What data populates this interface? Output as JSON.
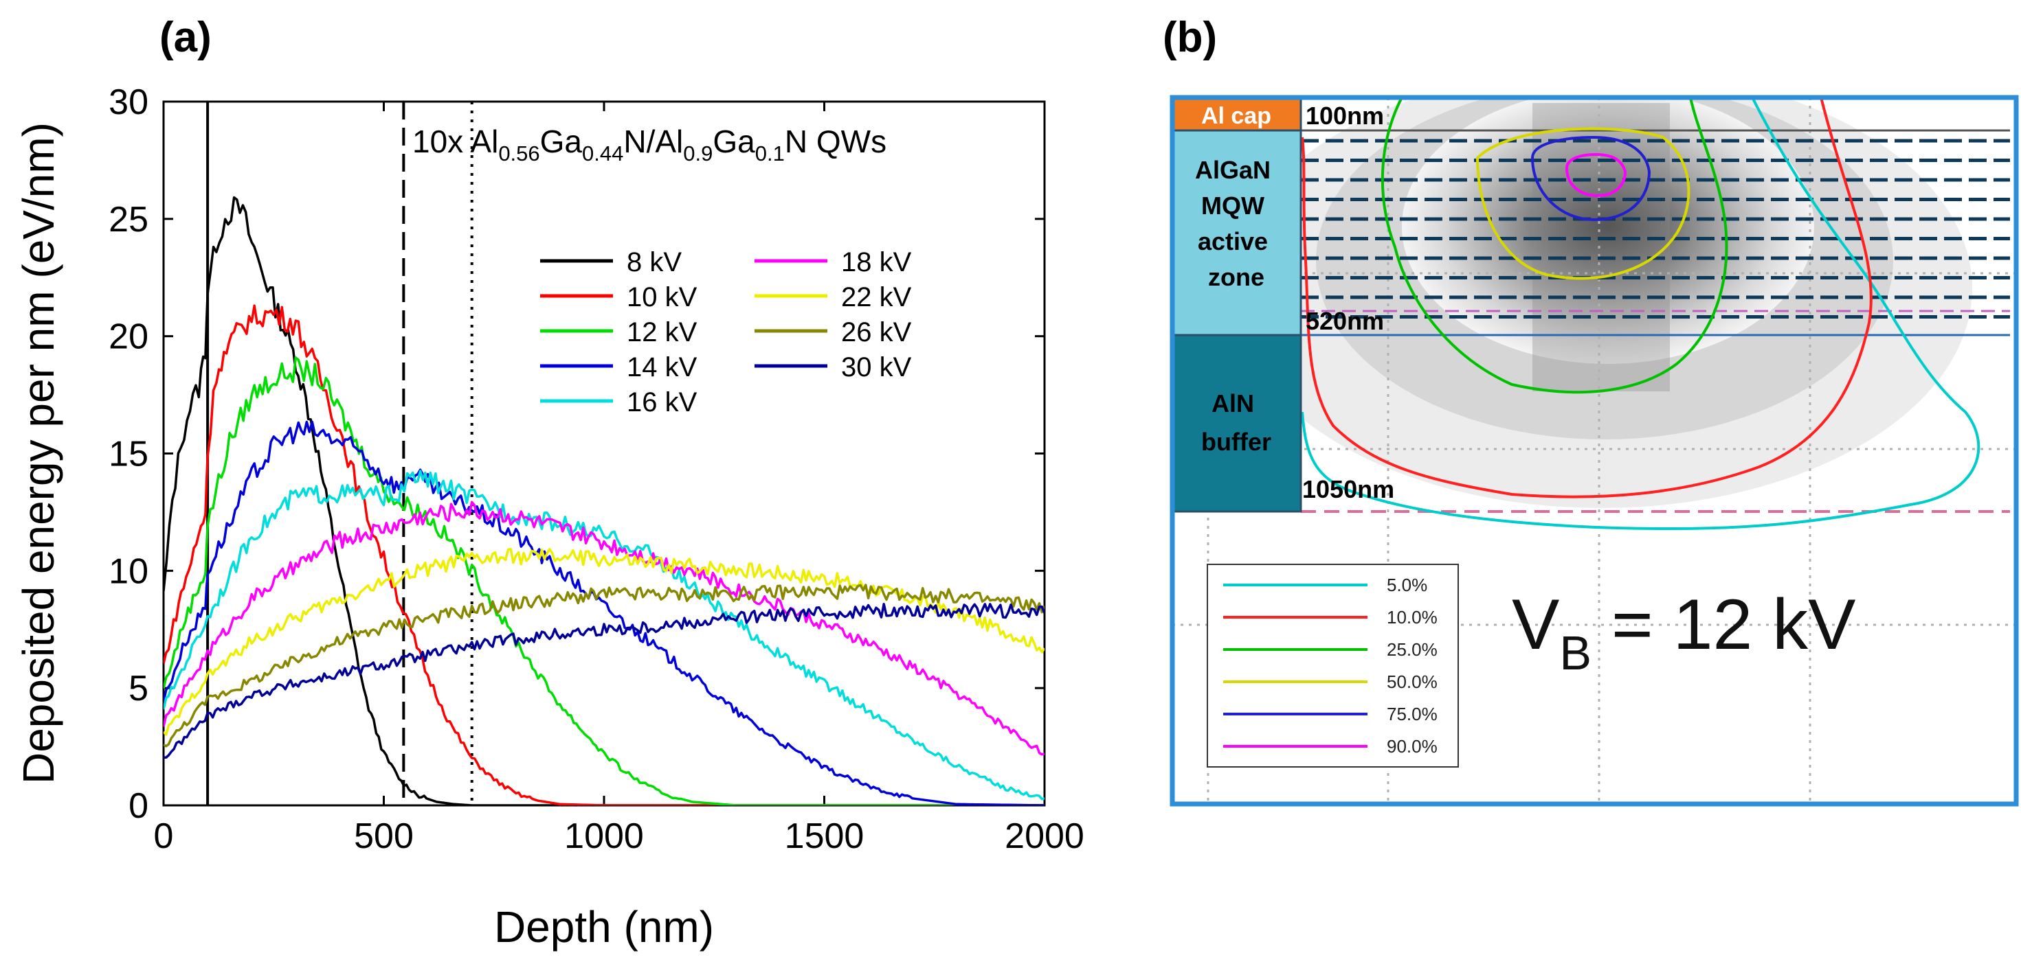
{
  "chart_data": [
    {
      "type": "line",
      "panel_label": "(a)",
      "title_parts": [
        "10x Al",
        "0.56",
        "Ga",
        "0.44",
        "N/Al",
        "0.9",
        "Ga",
        "0.1",
        "N QWs"
      ],
      "xlabel": "Depth (nm)",
      "ylabel": "Deposited energy per nm (eV/nm)",
      "xlim": [
        0,
        2000
      ],
      "ylim": [
        0,
        30
      ],
      "xticks": [
        0,
        500,
        1000,
        1500,
        2000
      ],
      "yticks": [
        0,
        5,
        10,
        15,
        20,
        25,
        30
      ],
      "vlines": [
        {
          "x": 100,
          "style": "solid"
        },
        {
          "x": 545,
          "style": "dashed"
        },
        {
          "x": 700,
          "style": "dotted"
        }
      ],
      "legend_location": "right",
      "series": [
        {
          "name": "8 kV",
          "color": "#000000",
          "x": [
            0,
            20,
            40,
            60,
            80,
            95,
            100,
            120,
            140,
            160,
            180,
            200,
            230,
            260,
            300,
            340,
            380,
            420,
            460,
            500,
            540,
            580,
            620,
            660,
            700,
            800,
            2000
          ],
          "y": [
            9,
            13,
            15.5,
            17,
            17.8,
            19.5,
            22,
            24,
            25,
            25.5,
            25.3,
            24,
            22.5,
            21,
            19,
            16,
            12,
            8,
            4.5,
            2.2,
            1,
            0.4,
            0.15,
            0.05,
            0,
            0,
            0
          ]
        },
        {
          "name": "10 kV",
          "color": "#ff0000",
          "x": [
            0,
            40,
            80,
            95,
            100,
            120,
            160,
            200,
            250,
            300,
            350,
            400,
            450,
            500,
            550,
            600,
            650,
            700,
            750,
            800,
            850,
            900,
            1000,
            2000
          ],
          "y": [
            6,
            9,
            11.5,
            12.5,
            15,
            18.5,
            20,
            20.8,
            21,
            20.5,
            18.5,
            16,
            13,
            10.5,
            8,
            5.5,
            3.5,
            2,
            1.1,
            0.5,
            0.2,
            0.05,
            0,
            0
          ]
        },
        {
          "name": "12 kV",
          "color": "#00dd00",
          "x": [
            0,
            50,
            95,
            100,
            150,
            200,
            250,
            300,
            350,
            400,
            450,
            500,
            540,
            560,
            600,
            650,
            700,
            750,
            800,
            850,
            900,
            950,
            1000,
            1050,
            1100,
            1150,
            1200,
            1300,
            2000
          ],
          "y": [
            5,
            8,
            10,
            12,
            15.5,
            17.5,
            18.2,
            18.6,
            18.3,
            16.8,
            15,
            13.5,
            12.8,
            12.8,
            12.3,
            11.3,
            10,
            8.5,
            7,
            5.6,
            4.3,
            3.2,
            2.2,
            1.4,
            0.8,
            0.4,
            0.15,
            0,
            0
          ]
        },
        {
          "name": "14 kV",
          "color": "#0000dd",
          "x": [
            0,
            50,
            95,
            100,
            150,
            200,
            250,
            300,
            350,
            400,
            450,
            500,
            540,
            560,
            600,
            650,
            700,
            800,
            900,
            1000,
            1100,
            1200,
            1300,
            1400,
            1500,
            1600,
            1700,
            1800,
            2000
          ],
          "y": [
            4.5,
            7,
            8.5,
            10,
            12,
            14,
            15.3,
            16,
            15.9,
            15.5,
            15,
            14,
            13.5,
            14.2,
            13.7,
            13,
            12.7,
            11.5,
            10,
            8.5,
            7,
            5.5,
            4,
            2.7,
            1.6,
            0.8,
            0.3,
            0.05,
            0
          ]
        },
        {
          "name": "16 kV",
          "color": "#00dddd",
          "x": [
            0,
            100,
            200,
            300,
            400,
            500,
            540,
            560,
            600,
            700,
            800,
            900,
            1000,
            1100,
            1200,
            1300,
            1400,
            1500,
            1600,
            1700,
            1800,
            1900,
            2000
          ],
          "y": [
            4.2,
            8,
            11.5,
            13.2,
            13.3,
            13.2,
            13.3,
            14,
            13.9,
            13.1,
            12.4,
            12,
            11.5,
            10.8,
            9.3,
            7.8,
            6.4,
            5.2,
            4,
            2.8,
            1.7,
            0.8,
            0.3
          ]
        },
        {
          "name": "18 kV",
          "color": "#ff00ff",
          "x": [
            0,
            100,
            200,
            300,
            400,
            500,
            600,
            700,
            800,
            900,
            1000,
            1100,
            1200,
            1300,
            1400,
            1500,
            1600,
            1700,
            1800,
            1900,
            2000
          ],
          "y": [
            3.5,
            6.5,
            8.8,
            10.2,
            11.3,
            11.8,
            12.4,
            12.6,
            12.3,
            11.8,
            11.2,
            10.6,
            10,
            9.2,
            8.5,
            7.7,
            6.9,
            5.9,
            4.8,
            3.5,
            2.2
          ]
        },
        {
          "name": "22 kV",
          "color": "#eeee00",
          "x": [
            0,
            100,
            200,
            300,
            400,
            500,
            600,
            700,
            800,
            900,
            1000,
            1100,
            1200,
            1300,
            1400,
            1500,
            1600,
            1700,
            1800,
            1900,
            2000
          ],
          "y": [
            3,
            5.5,
            7,
            8,
            8.8,
            9.5,
            10.1,
            10.5,
            10.6,
            10.6,
            10.5,
            10.3,
            10.2,
            10.1,
            9.9,
            9.7,
            9.3,
            8.8,
            8.2,
            7.5,
            6.7
          ]
        },
        {
          "name": "26 kV",
          "color": "#888800",
          "x": [
            0,
            100,
            200,
            300,
            400,
            500,
            600,
            700,
            800,
            900,
            1000,
            1100,
            1200,
            1300,
            1400,
            1500,
            1600,
            1700,
            1800,
            1900,
            2000
          ],
          "y": [
            2.5,
            4.5,
            5.3,
            6.2,
            7,
            7.6,
            8,
            8.3,
            8.6,
            8.8,
            9,
            9,
            9,
            9,
            9.1,
            9.1,
            9.1,
            9,
            8.9,
            8.7,
            8.5
          ]
        },
        {
          "name": "30 kV",
          "color": "#000099",
          "x": [
            0,
            100,
            200,
            300,
            400,
            500,
            600,
            700,
            800,
            900,
            1000,
            1100,
            1200,
            1300,
            1400,
            1500,
            1600,
            1700,
            1800,
            1900,
            2000
          ],
          "y": [
            2,
            3.8,
            4.7,
            5.2,
            5.6,
            6,
            6.4,
            6.8,
            7.1,
            7.3,
            7.5,
            7.6,
            7.8,
            8,
            8.1,
            8.2,
            8.3,
            8.3,
            8.3,
            8.3,
            8.2
          ]
        }
      ]
    },
    {
      "type": "heatmap",
      "panel_label": "(b)",
      "annotation": {
        "prefix": "V",
        "subscript": "B",
        "suffix": " = 12 kV"
      },
      "layers": [
        {
          "label_lines": [
            "Al cap"
          ],
          "color": "#f07a20",
          "boundary_label": "100nm"
        },
        {
          "label_lines": [
            "AlGaN",
            "MQW",
            "active",
            "zone"
          ],
          "color": "#7ecfe0",
          "boundary_label": "520nm"
        },
        {
          "label_lines": [
            "AlN",
            "buffer"
          ],
          "color": "#127a90",
          "boundary_label": "1050nm"
        }
      ],
      "contour_legend": [
        {
          "label": "5.0%",
          "color": "#00cccc"
        },
        {
          "label": "10.0%",
          "color": "#ff2020"
        },
        {
          "label": "25.0%",
          "color": "#00c000"
        },
        {
          "label": "50.0%",
          "color": "#d8d800"
        },
        {
          "label": "75.0%",
          "color": "#2020d0"
        },
        {
          "label": "90.0%",
          "color": "#ff00ff"
        }
      ]
    }
  ]
}
